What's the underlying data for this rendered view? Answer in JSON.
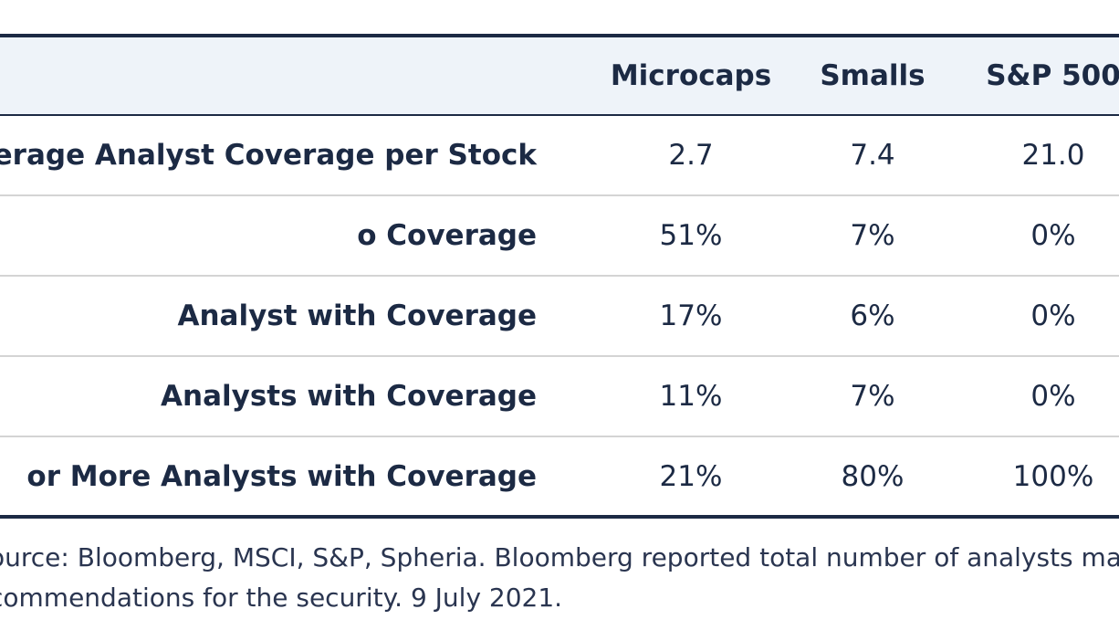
{
  "table": {
    "columns": [
      "Microcaps",
      "Smalls",
      "S&P 500"
    ],
    "rows": [
      {
        "label": "verage Analyst Coverage per Stock",
        "values": [
          "2.7",
          "7.4",
          "21.0"
        ]
      },
      {
        "label": "o Coverage",
        "values": [
          "51%",
          "7%",
          "0%"
        ]
      },
      {
        "label": "Analyst with Coverage",
        "values": [
          "17%",
          "6%",
          "0%"
        ]
      },
      {
        "label": "Analysts with Coverage",
        "values": [
          "11%",
          "7%",
          "0%"
        ]
      },
      {
        "label": "or More Analysts with Coverage",
        "values": [
          "21%",
          "80%",
          "100%"
        ]
      }
    ]
  },
  "footnote": {
    "line1": "ource: Bloomberg, MSCI, S&P, Spheria. Bloomberg reported total number of analysts ma",
    "line2": "commendations for the security. 9 July 2021."
  }
}
